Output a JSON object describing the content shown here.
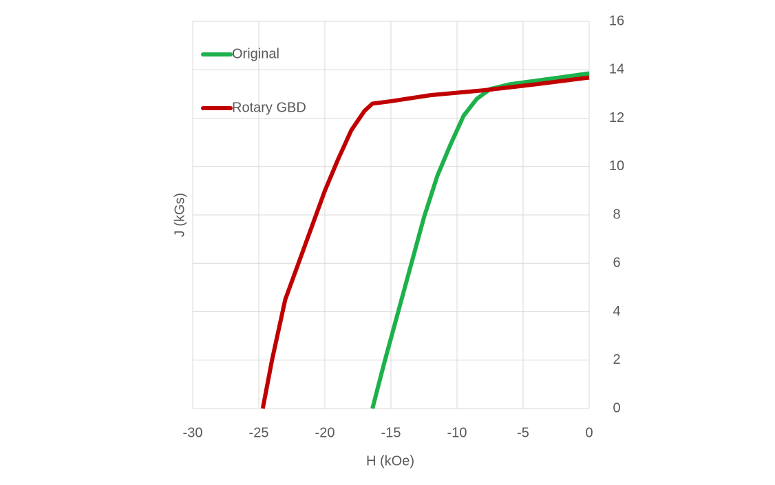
{
  "chart_data": {
    "type": "line",
    "xlabel": "H (kOe)",
    "ylabel": "J (kGs)",
    "xlim": [
      -30,
      0
    ],
    "xticks": [
      -30,
      -25,
      -20,
      -15,
      -10,
      -5,
      0
    ],
    "ylim": [
      0,
      16
    ],
    "yticks": [
      0,
      2,
      4,
      6,
      8,
      10,
      12,
      14,
      16
    ],
    "grid": true,
    "legend": "upper left",
    "y_axis_side": "right",
    "series": [
      {
        "name": "Original",
        "color": "#1db14b",
        "x": [
          -16.4,
          -15.5,
          -14.5,
          -13.5,
          -12.5,
          -11.5,
          -10.5,
          -9.5,
          -8.5,
          -7.5,
          -6,
          -4,
          -2,
          0
        ],
        "values": [
          0,
          1.9,
          3.9,
          5.9,
          7.9,
          9.6,
          10.9,
          12.1,
          12.8,
          13.2,
          13.4,
          13.55,
          13.7,
          13.85
        ]
      },
      {
        "name": "Rotary GBD",
        "color": "#c00000",
        "x": [
          -24.7,
          -24,
          -23,
          -22,
          -21,
          -20,
          -19,
          -18,
          -17,
          -16.4,
          -15,
          -12,
          -8,
          -4,
          0
        ],
        "values": [
          0,
          2,
          4.5,
          6,
          7.5,
          9,
          10.3,
          11.5,
          12.3,
          12.6,
          12.7,
          12.95,
          13.15,
          13.4,
          13.68
        ]
      }
    ]
  }
}
